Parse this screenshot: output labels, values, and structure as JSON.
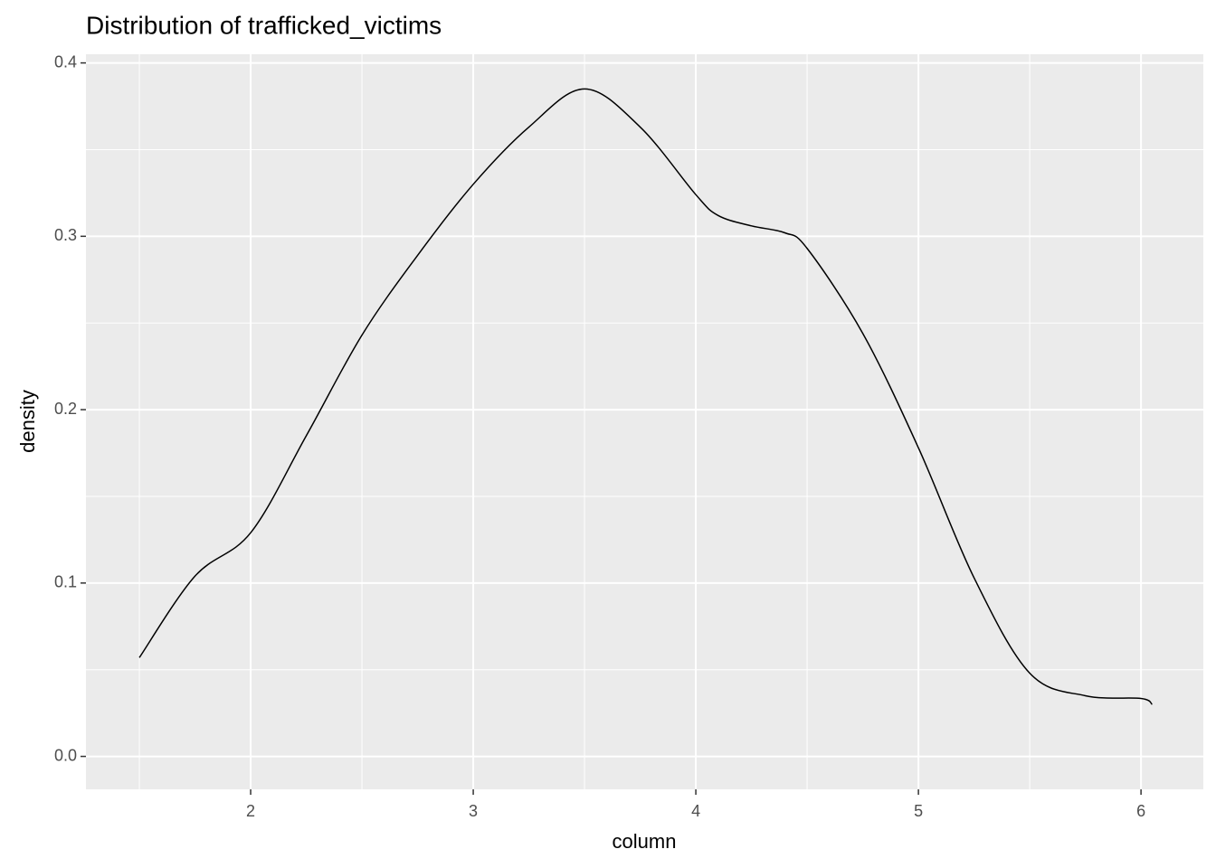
{
  "chart_data": {
    "type": "line",
    "title": "Distribution of trafficked_victims",
    "x_label": "column",
    "y_label": "density",
    "x": [
      1.5,
      1.75,
      2.0,
      2.25,
      2.5,
      2.75,
      3.0,
      3.25,
      3.5,
      3.75,
      4.0,
      4.1,
      4.25,
      4.4,
      4.5,
      4.75,
      5.0,
      5.25,
      5.5,
      5.75,
      6.0,
      6.05
    ],
    "series": [
      {
        "color": "#000000",
        "values": [
          0.057,
          0.104,
          0.129,
          0.185,
          0.243,
          0.289,
          0.33,
          0.363,
          0.385,
          0.363,
          0.324,
          0.312,
          0.306,
          0.302,
          0.293,
          0.244,
          0.178,
          0.103,
          0.048,
          0.035,
          0.0334,
          0.03
        ]
      }
    ],
    "xlim": [
      1.26,
      6.28
    ],
    "ylim": [
      -0.019,
      0.405
    ],
    "xticks": [
      2,
      3,
      4,
      5,
      6
    ],
    "yticks": [
      {
        "value": 0,
        "label": "0.0"
      },
      0.1,
      0.2,
      0.3,
      0.4
    ],
    "minor_xticks": [
      1.5,
      2.5,
      3.5,
      4.5,
      5.5
    ],
    "minor_yticks": [
      0.05,
      0.15,
      0.25,
      0.35
    ],
    "grid": true
  }
}
